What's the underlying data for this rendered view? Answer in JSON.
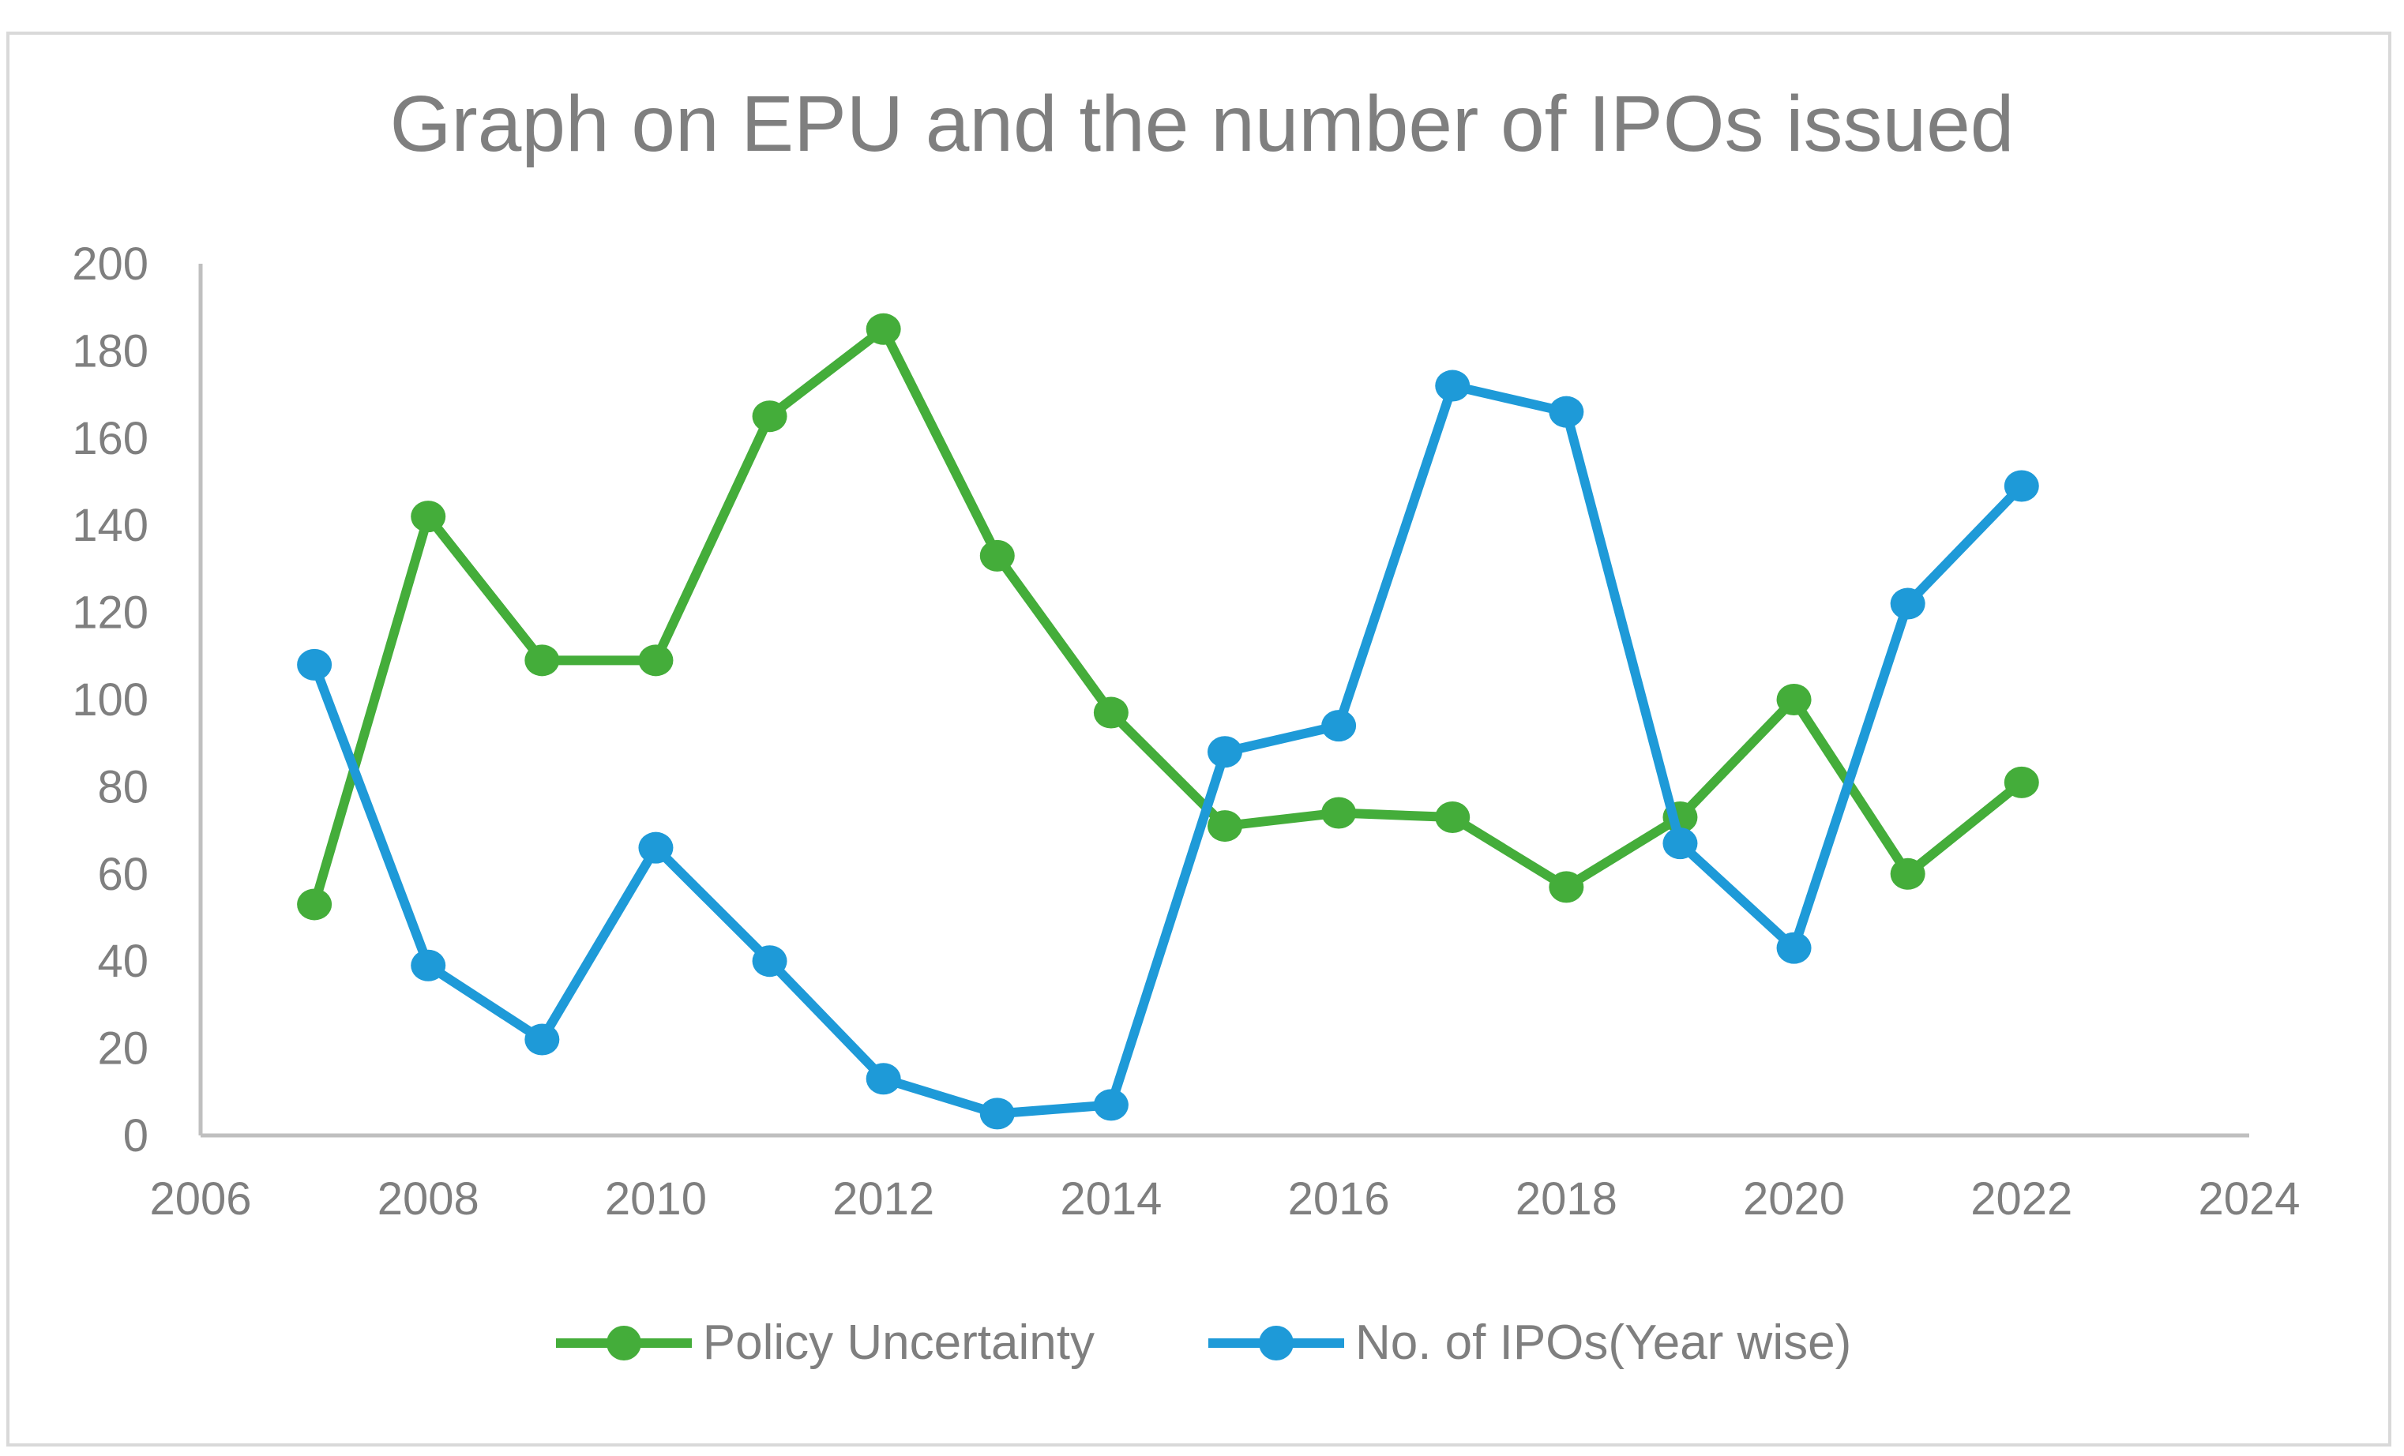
{
  "chart_data": {
    "type": "line",
    "title": "Graph on EPU and the number of IPOs issued",
    "xlabel": "",
    "ylabel": "",
    "xlim": [
      2006,
      2024
    ],
    "ylim": [
      0,
      200
    ],
    "x_ticks": [
      "2006",
      "2008",
      "2010",
      "2012",
      "2014",
      "2016",
      "2018",
      "2020",
      "2022",
      "2024"
    ],
    "y_ticks": [
      "0",
      "20",
      "40",
      "60",
      "80",
      "100",
      "120",
      "140",
      "160",
      "180",
      "200"
    ],
    "grid": false,
    "legend_position": "bottom",
    "x": [
      2007,
      2008,
      2009,
      2010,
      2011,
      2012,
      2013,
      2014,
      2015,
      2016,
      2017,
      2018,
      2019,
      2020,
      2021,
      2022
    ],
    "series": [
      {
        "name": "Policy Uncertainty",
        "color": "#44AD3A",
        "values": [
          53,
          142,
          109,
          109,
          165,
          185,
          133,
          97,
          71,
          74,
          73,
          57,
          73,
          100,
          60,
          81
        ]
      },
      {
        "name": "No. of IPOs(Year wise)",
        "color": "#1E9AD8",
        "values": [
          108,
          39,
          22,
          66,
          40,
          13,
          5,
          7,
          88,
          94,
          172,
          166,
          67,
          43,
          122,
          149
        ]
      }
    ]
  }
}
